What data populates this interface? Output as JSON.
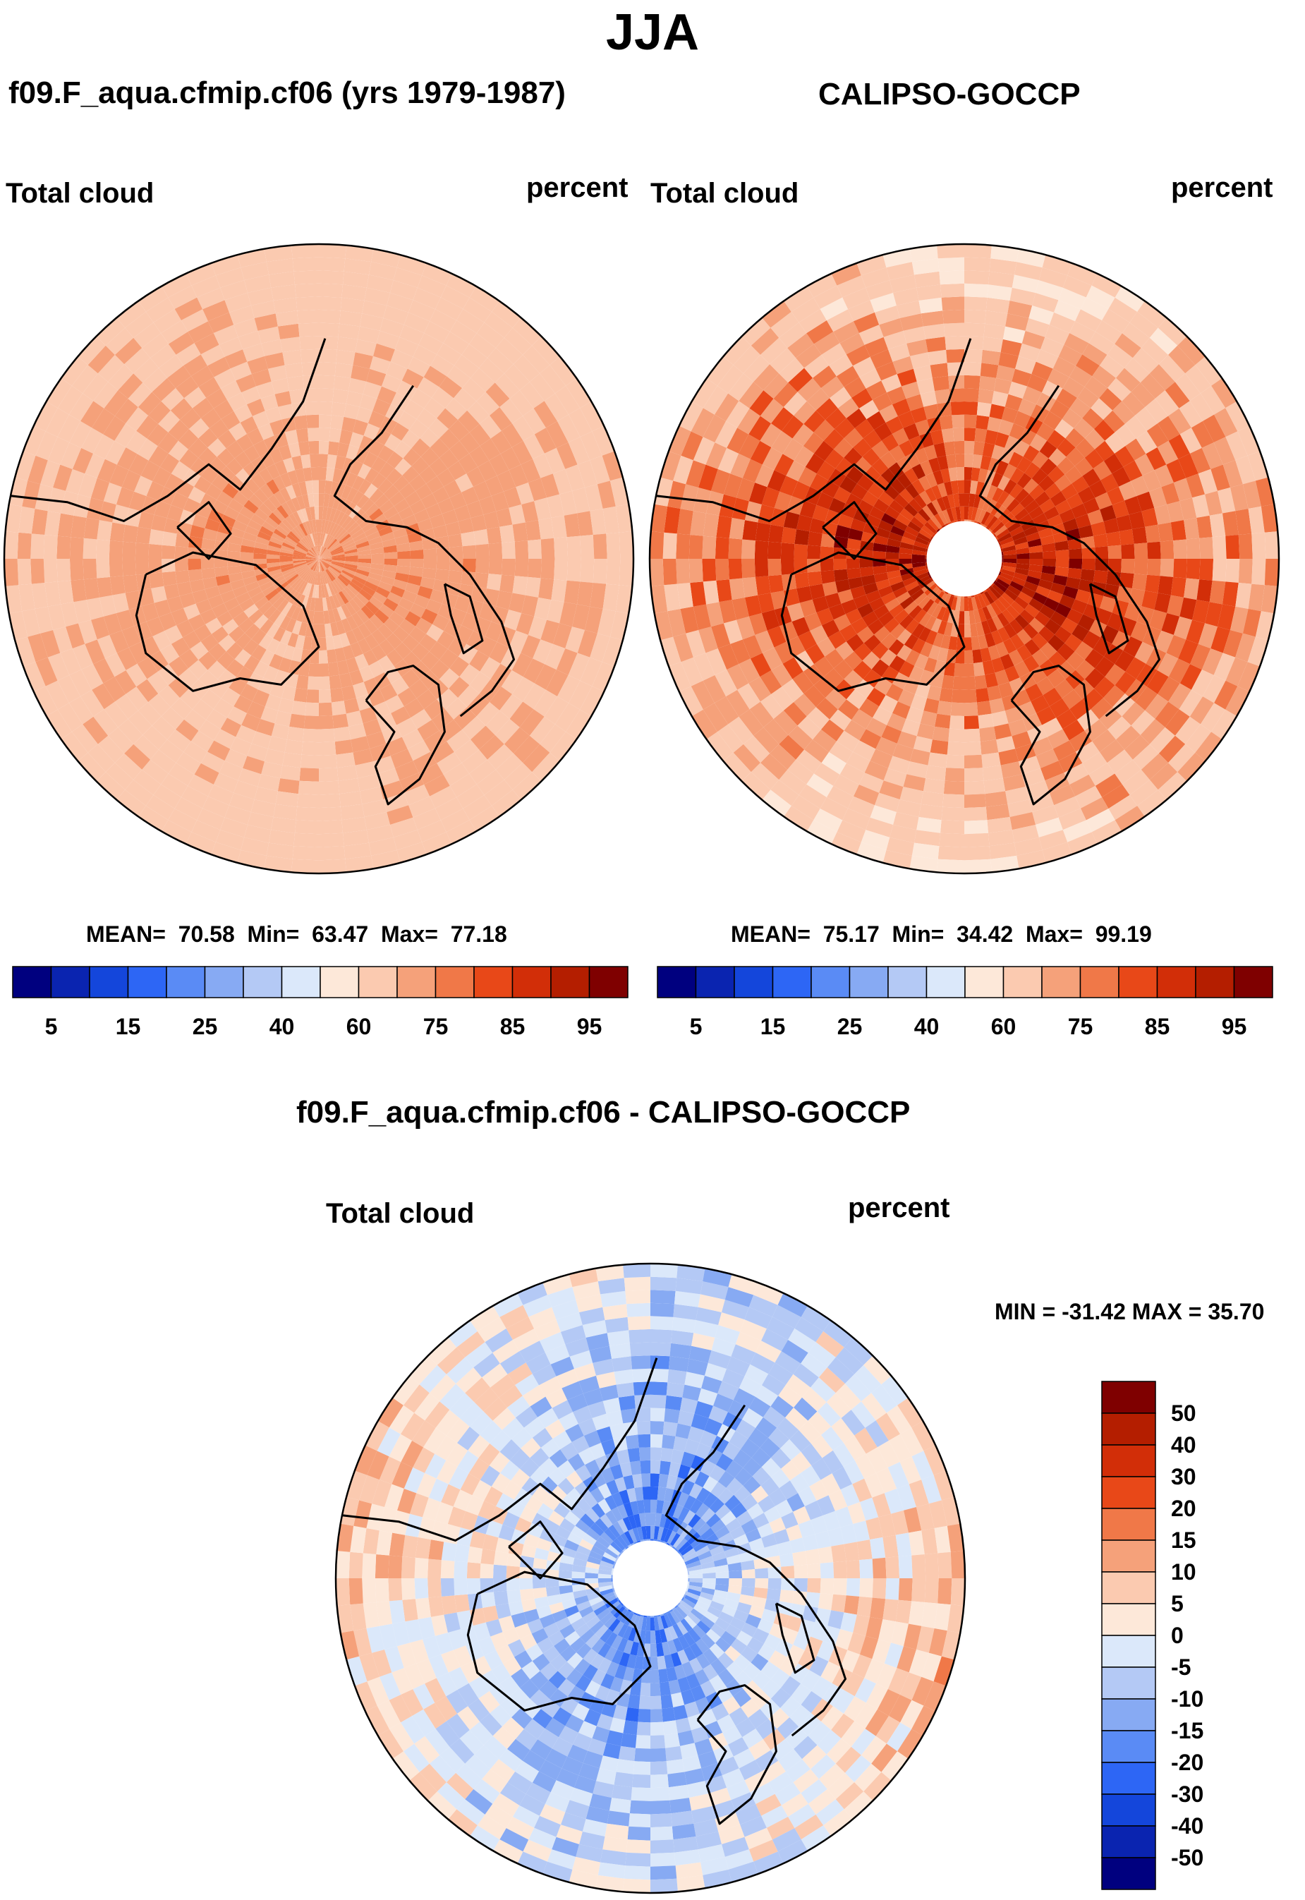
{
  "page": {
    "title": "JJA",
    "model_title": "f09.F_aqua.cfmip.cf06 (yrs 1979-1987)",
    "obs_title": "CALIPSO-GOCCP",
    "diff_title": "f09.F_aqua.cfmip.cf06 - CALIPSO-GOCCP"
  },
  "colors": {
    "seq": [
      "#00007f",
      "#0a24b0",
      "#1446db",
      "#2d66f5",
      "#5a8bf5",
      "#87aaf3",
      "#b4c9f5",
      "#dbe8fa",
      "#fde8d9",
      "#fbcab0",
      "#f5a17a",
      "#f07848",
      "#e84818",
      "#d22e08",
      "#b41e00",
      "#7f0000"
    ],
    "diff": [
      "#00007f",
      "#0a24b0",
      "#1446db",
      "#2d66f5",
      "#5a8bf5",
      "#87aaf3",
      "#b4c9f5",
      "#dbe8fa",
      "#fde8d9",
      "#fbcab0",
      "#f5a17a",
      "#f07848",
      "#e84818",
      "#d22e08",
      "#b41e00",
      "#7f0000"
    ],
    "land": "#000000"
  },
  "chart_data": [
    {
      "type": "heatmap",
      "projection": "north-polar-stereographic",
      "panel": "model",
      "left_label": "Total cloud",
      "right_label": "percent",
      "stats": {
        "mean_label": "MEAN=",
        "mean": "70.58",
        "min_label": "Min=",
        "min": "63.47",
        "max_label": "Max=",
        "max": "77.18"
      },
      "levels": [
        5,
        10,
        15,
        20,
        25,
        30,
        40,
        50,
        60,
        70,
        75,
        80,
        85,
        90,
        95
      ],
      "tick_labels": [
        "5",
        "15",
        "25",
        "40",
        "60",
        "75",
        "85",
        "95"
      ],
      "field": {
        "outer": 67,
        "middle": 72,
        "inner": 74,
        "pole": 70
      }
    },
    {
      "type": "heatmap",
      "projection": "north-polar-stereographic",
      "panel": "obs",
      "left_label": "Total cloud",
      "right_label": "percent",
      "stats": {
        "mean_label": "MEAN=",
        "mean": "75.17",
        "min_label": "Min=",
        "min": "34.42",
        "max_label": "Max=",
        "max": "99.19"
      },
      "levels": [
        5,
        10,
        15,
        20,
        25,
        30,
        40,
        50,
        60,
        70,
        75,
        80,
        85,
        90,
        95
      ],
      "tick_labels": [
        "5",
        "15",
        "25",
        "40",
        "60",
        "75",
        "85",
        "95"
      ],
      "field": {
        "outer": 65,
        "middle": 84,
        "inner": 88,
        "pole": null
      }
    },
    {
      "type": "heatmap",
      "projection": "north-polar-stereographic",
      "panel": "difference",
      "left_label": "Total cloud",
      "right_label": "percent",
      "stats_text": "MIN = -31.42 MAX =  35.70",
      "levels": [
        -50,
        -40,
        -30,
        -20,
        -15,
        -10,
        -5,
        0,
        5,
        10,
        15,
        20,
        30,
        40,
        50
      ],
      "tick_labels": [
        "50",
        "40",
        "30",
        "20",
        "15",
        "10",
        "5",
        "0",
        "-5",
        "-10",
        "-15",
        "-20",
        "-30",
        "-40",
        "-50"
      ],
      "field": {
        "outer": 3,
        "middle": -8,
        "inner": -18,
        "pole": null
      }
    }
  ]
}
